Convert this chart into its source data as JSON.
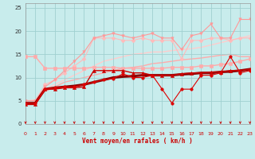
{
  "xlabel": "Vent moyen/en rafales ( km/h )",
  "xlim": [
    0,
    23
  ],
  "ylim": [
    0,
    26
  ],
  "xticks": [
    0,
    1,
    2,
    3,
    4,
    5,
    6,
    7,
    8,
    9,
    10,
    11,
    12,
    13,
    14,
    15,
    16,
    17,
    18,
    19,
    20,
    21,
    22,
    23
  ],
  "yticks": [
    0,
    5,
    10,
    15,
    20,
    25
  ],
  "background_color": "#c8ecec",
  "grid_color": "#a0d0d0",
  "series": [
    {
      "x": [
        0,
        1,
        2,
        3,
        4,
        5,
        6,
        7,
        8,
        9,
        10,
        11,
        12,
        13,
        14,
        15,
        16,
        17,
        18,
        19,
        20,
        21,
        22,
        23
      ],
      "y": [
        4.5,
        4.5,
        7.5,
        7.8,
        8.0,
        8.2,
        8.5,
        9.0,
        9.5,
        10.0,
        10.2,
        10.3,
        10.5,
        10.5,
        10.5,
        10.5,
        10.7,
        10.8,
        11.0,
        11.0,
        11.2,
        11.3,
        11.5,
        11.8
      ],
      "color": "#880000",
      "linewidth": 2.2,
      "marker": null,
      "markersize": 0,
      "zorder": 5
    },
    {
      "x": [
        0,
        1,
        2,
        3,
        4,
        5,
        6,
        7,
        8,
        9,
        10,
        11,
        12,
        13,
        14,
        15,
        16,
        17,
        18,
        19,
        20,
        21,
        22,
        23
      ],
      "y": [
        4.2,
        4.2,
        7.5,
        7.5,
        7.8,
        7.8,
        8.0,
        11.5,
        11.5,
        11.5,
        11.5,
        11.0,
        11.0,
        10.5,
        10.5,
        10.5,
        10.8,
        11.0,
        11.0,
        11.2,
        11.2,
        11.5,
        11.5,
        11.8
      ],
      "color": "#cc0000",
      "linewidth": 1.0,
      "marker": "^",
      "markersize": 3,
      "zorder": 6
    },
    {
      "x": [
        0,
        1,
        2,
        3,
        4,
        5,
        6,
        7,
        8,
        9,
        10,
        11,
        12,
        13,
        14,
        15,
        16,
        17,
        18,
        19,
        20,
        21,
        22,
        23
      ],
      "y": [
        4.5,
        4.5,
        7.5,
        7.8,
        8.0,
        8.0,
        8.5,
        9.0,
        9.5,
        9.8,
        10.8,
        10.0,
        10.0,
        10.5,
        7.5,
        4.5,
        7.5,
        7.5,
        10.5,
        10.5,
        11.0,
        14.5,
        11.0,
        11.5
      ],
      "color": "#dd0000",
      "linewidth": 0.8,
      "marker": "o",
      "markersize": 2.5,
      "zorder": 6
    },
    {
      "x": [
        0,
        1,
        2,
        3,
        4,
        5,
        6,
        7,
        8,
        9,
        10,
        11,
        12,
        13,
        14,
        15,
        16,
        17,
        18,
        19,
        20,
        21,
        22,
        23
      ],
      "y": [
        14.5,
        14.5,
        12.0,
        12.0,
        12.0,
        12.0,
        12.0,
        12.2,
        12.2,
        12.2,
        12.0,
        12.0,
        12.0,
        12.0,
        12.0,
        12.2,
        12.2,
        12.2,
        12.5,
        12.5,
        12.8,
        13.0,
        13.5,
        14.0
      ],
      "color": "#ffaaaa",
      "linewidth": 1.0,
      "marker": "s",
      "markersize": 2.5,
      "zorder": 3
    },
    {
      "x": [
        0,
        1,
        2,
        3,
        4,
        5,
        6,
        7,
        8,
        9,
        10,
        11,
        12,
        13,
        14,
        15,
        16,
        17,
        18,
        19,
        20,
        21,
        22,
        23
      ],
      "y": [
        5.0,
        5.0,
        8.5,
        9.5,
        11.0,
        12.5,
        14.0,
        18.5,
        18.5,
        18.5,
        18.0,
        18.0,
        18.5,
        18.0,
        18.0,
        18.0,
        14.0,
        18.0,
        18.0,
        18.5,
        18.5,
        18.0,
        18.5,
        18.5
      ],
      "color": "#ffbbbb",
      "linewidth": 0.8,
      "marker": "D",
      "markersize": 2.5,
      "zorder": 2
    },
    {
      "x": [
        0,
        1,
        2,
        3,
        4,
        5,
        6,
        7,
        8,
        9,
        10,
        11,
        12,
        13,
        14,
        15,
        16,
        17,
        18,
        19,
        20,
        21,
        22,
        23
      ],
      "y": [
        5.0,
        5.0,
        8.0,
        9.5,
        11.5,
        13.5,
        15.5,
        18.5,
        19.0,
        19.5,
        19.0,
        18.5,
        19.0,
        19.5,
        18.5,
        18.5,
        16.0,
        19.0,
        19.5,
        21.5,
        18.5,
        18.5,
        22.5,
        22.5
      ],
      "color": "#ff9999",
      "linewidth": 0.8,
      "marker": "v",
      "markersize": 2.5,
      "zorder": 2
    },
    {
      "x": [
        0,
        1,
        2,
        3,
        4,
        5,
        6,
        7,
        8,
        9,
        10,
        11,
        12,
        13,
        14,
        15,
        16,
        17,
        18,
        19,
        20,
        21,
        22,
        23
      ],
      "y": [
        5.0,
        5.2,
        7.5,
        8.5,
        9.5,
        10.5,
        11.5,
        12.5,
        13.5,
        14.0,
        14.5,
        15.0,
        15.2,
        15.5,
        15.5,
        15.8,
        16.0,
        16.2,
        16.5,
        17.0,
        17.5,
        18.0,
        18.5,
        19.0
      ],
      "color": "#ffcccc",
      "linewidth": 1.0,
      "marker": null,
      "markersize": 0,
      "zorder": 1
    },
    {
      "x": [
        0,
        1,
        2,
        3,
        4,
        5,
        6,
        7,
        8,
        9,
        10,
        11,
        12,
        13,
        14,
        15,
        16,
        17,
        18,
        19,
        20,
        21,
        22,
        23
      ],
      "y": [
        5.0,
        5.0,
        7.0,
        8.0,
        9.0,
        9.5,
        10.0,
        10.5,
        11.0,
        11.5,
        12.0,
        12.2,
        12.5,
        13.0,
        13.2,
        13.5,
        13.8,
        14.0,
        14.2,
        14.5,
        14.8,
        15.0,
        14.5,
        14.5
      ],
      "color": "#ffaaaa",
      "linewidth": 1.0,
      "marker": null,
      "markersize": 0,
      "zorder": 1
    }
  ]
}
